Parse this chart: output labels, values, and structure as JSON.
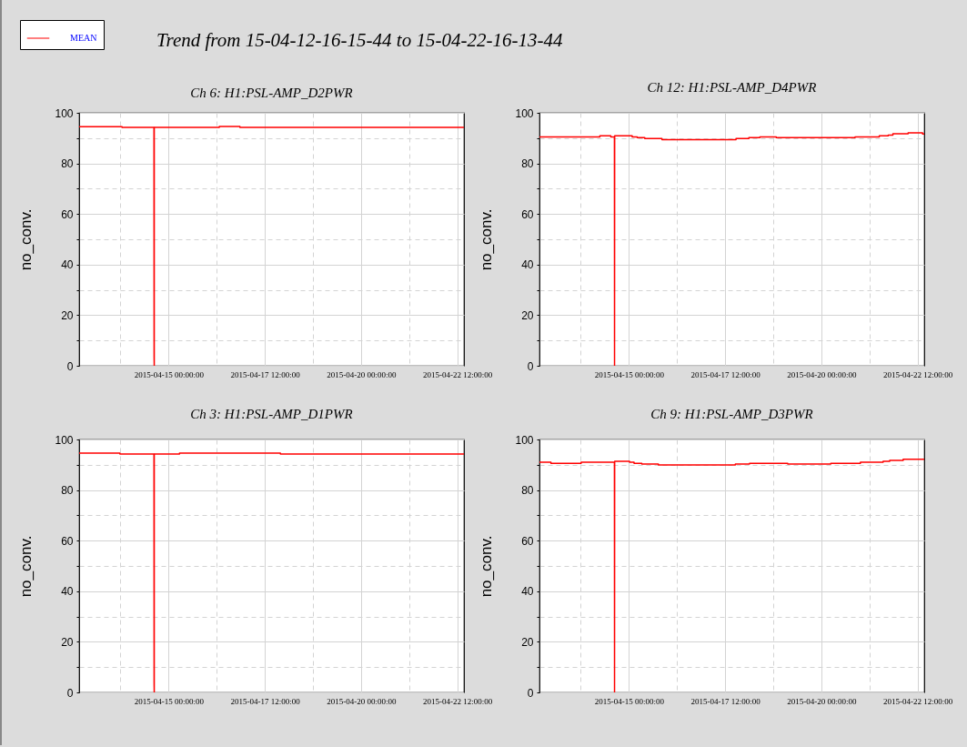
{
  "chart_data": [
    {
      "type": "line",
      "title": "Ch 6: H1:PSL-AMP_D2PWR",
      "ylabel": "no_conv.",
      "annotations": [
        "Trend from 15-04-12-16-15-44 to 15-04-22-16-13-44"
      ],
      "legend": "top left",
      "grid": true,
      "x": [
        "2015-04-12T16:15",
        "2015-04-13T19:00",
        "2015-04-13T19:00",
        "2015-04-14T14:55",
        "2015-04-14T15:00",
        "2015-04-14T15:05",
        "2015-04-14T15:05",
        "2015-04-16T07:40",
        "2015-04-16T07:40",
        "2015-04-16T20:30",
        "2015-04-16T20:30",
        "2015-04-22T16:13"
      ],
      "series": [
        {
          "name": "MEAN",
          "color": "#ff0000",
          "values": [
            94.5,
            94.5,
            94.2,
            94.2,
            3.3,
            0,
            94.2,
            94.2,
            94.6,
            94.6,
            94.2,
            94.2
          ]
        }
      ],
      "xlim": [
        "2015-04-12T16:15",
        "2015-04-22T16:13"
      ],
      "xticks": [
        {
          "value": "2015-04-13T18:00",
          "label": null
        },
        {
          "value": "2015-04-15T00:00",
          "label": "2015-04-15 00:00:00"
        },
        {
          "value": "2015-04-16T06:00",
          "label": null
        },
        {
          "value": "2015-04-17T12:00",
          "label": "2015-04-17 12:00:00"
        },
        {
          "value": "2015-04-18T18:00",
          "label": null
        },
        {
          "value": "2015-04-20T00:00",
          "label": "2015-04-20 00:00:00"
        },
        {
          "value": "2015-04-21T06:00",
          "label": null
        },
        {
          "value": "2015-04-22T12:00",
          "label": "2015-04-22 12:00:00"
        }
      ],
      "ylim": [
        0,
        100
      ],
      "yticks": [
        0,
        {
          "value": 10,
          "label": null
        },
        20,
        {
          "value": 30,
          "label": null
        },
        40,
        {
          "value": 50,
          "label": null
        },
        60,
        {
          "value": 70,
          "label": null
        },
        80,
        {
          "value": 90,
          "label": null
        },
        100
      ]
    },
    {
      "type": "line",
      "title": "Ch 12: H1:PSL-AMP_D4PWR",
      "ylabel": "no_conv.",
      "grid": true,
      "x": [
        "2015-04-12T16:15",
        "2015-04-14T05:55",
        "2015-04-14T05:55",
        "2015-04-14T12:45",
        "2015-04-14T12:45",
        "2015-04-14T15:00",
        "2015-04-14T15:05",
        "2015-04-14T15:10",
        "2015-04-15T02:05",
        "2015-04-15T02:05",
        "2015-04-15T05:15",
        "2015-04-15T05:15",
        "2015-04-15T09:55",
        "2015-04-15T09:55",
        "2015-04-15T20:40",
        "2015-04-15T20:40",
        "2015-04-17T18:50",
        "2015-04-17T18:50",
        "2015-04-18T02:50",
        "2015-04-18T02:50",
        "2015-04-18T09:40",
        "2015-04-18T09:40",
        "2015-04-18T19:55",
        "2015-04-18T19:55",
        "2015-04-20T21:05",
        "2015-04-20T21:05",
        "2015-04-21T12:10",
        "2015-04-21T12:10",
        "2015-04-21T17:45",
        "2015-04-21T17:45",
        "2015-04-21T20:40",
        "2015-04-21T20:40",
        "2015-04-22T06:10",
        "2015-04-22T06:10",
        "2015-04-22T15:10",
        "2015-04-22T15:10",
        "2015-04-22T16:13"
      ],
      "series": [
        {
          "color": "#ff0000",
          "values": [
            90.5,
            90.5,
            90.9,
            90.9,
            90.5,
            90.5,
            0,
            90.9,
            90.9,
            90.5,
            90.5,
            90.2,
            90.2,
            89.8,
            89.8,
            89.4,
            89.4,
            89.8,
            89.8,
            90.2,
            90.2,
            90.5,
            90.5,
            90.2,
            90.2,
            90.5,
            90.5,
            90.9,
            90.9,
            91.2,
            91.2,
            91.7,
            91.7,
            92.1,
            92.1,
            91.6,
            91.6
          ]
        }
      ],
      "xlim": [
        "2015-04-12T16:15",
        "2015-04-22T16:13"
      ],
      "xticks": [
        {
          "value": "2015-04-13T18:00",
          "label": null
        },
        {
          "value": "2015-04-15T00:00",
          "label": "2015-04-15 00:00:00"
        },
        {
          "value": "2015-04-16T06:00",
          "label": null
        },
        {
          "value": "2015-04-17T12:00",
          "label": "2015-04-17 12:00:00"
        },
        {
          "value": "2015-04-18T18:00",
          "label": null
        },
        {
          "value": "2015-04-20T00:00",
          "label": "2015-04-20 00:00:00"
        },
        {
          "value": "2015-04-21T06:00",
          "label": null
        },
        {
          "value": "2015-04-22T12:00",
          "label": "2015-04-22 12:00:00"
        }
      ],
      "ylim": [
        0,
        100
      ],
      "yticks": [
        0,
        {
          "value": 10,
          "label": null
        },
        20,
        {
          "value": 30,
          "label": null
        },
        40,
        {
          "value": 50,
          "label": null
        },
        60,
        {
          "value": 70,
          "label": null
        },
        80,
        {
          "value": 90,
          "label": null
        },
        100
      ]
    },
    {
      "type": "line",
      "title": "Ch 3: H1:PSL-AMP_D1PWR",
      "ylabel": "no_conv.",
      "grid": true,
      "x": [
        "2015-04-12T16:15",
        "2015-04-13T17:40",
        "2015-04-13T17:40",
        "2015-04-14T14:55",
        "2015-04-14T15:00",
        "2015-04-14T15:05",
        "2015-04-14T15:05",
        "2015-04-15T06:50",
        "2015-04-15T06:50",
        "2015-04-17T21:45",
        "2015-04-17T21:45",
        "2015-04-22T16:13"
      ],
      "series": [
        {
          "color": "#ff0000",
          "values": [
            94.6,
            94.6,
            94.2,
            94.2,
            3.4,
            0,
            94.2,
            94.2,
            94.6,
            94.6,
            94.2,
            94.2
          ]
        }
      ],
      "xlim": [
        "2015-04-12T16:15",
        "2015-04-22T16:13"
      ],
      "xticks": [
        {
          "value": "2015-04-13T18:00",
          "label": null
        },
        {
          "value": "2015-04-15T00:00",
          "label": "2015-04-15 00:00:00"
        },
        {
          "value": "2015-04-16T06:00",
          "label": null
        },
        {
          "value": "2015-04-17T12:00",
          "label": "2015-04-17 12:00:00"
        },
        {
          "value": "2015-04-18T18:00",
          "label": null
        },
        {
          "value": "2015-04-20T00:00",
          "label": "2015-04-20 00:00:00"
        },
        {
          "value": "2015-04-21T06:00",
          "label": null
        },
        {
          "value": "2015-04-22T12:00",
          "label": "2015-04-22 12:00:00"
        }
      ],
      "ylim": [
        0,
        100
      ],
      "yticks": [
        0,
        {
          "value": 10,
          "label": null
        },
        20,
        {
          "value": 30,
          "label": null
        },
        40,
        {
          "value": 50,
          "label": null
        },
        60,
        {
          "value": 70,
          "label": null
        },
        80,
        {
          "value": 90,
          "label": null
        },
        100
      ]
    },
    {
      "type": "line",
      "title": "Ch 9: H1:PSL-AMP_D3PWR",
      "ylabel": "no_conv.",
      "grid": true,
      "x": [
        "2015-04-12T16:15",
        "2015-04-12T23:25",
        "2015-04-12T23:25",
        "2015-04-13T18:15",
        "2015-04-13T18:15",
        "2015-04-14T15:00",
        "2015-04-14T15:05",
        "2015-04-14T15:10",
        "2015-04-15T00:25",
        "2015-04-15T00:25",
        "2015-04-15T03:15",
        "2015-04-15T03:15",
        "2015-04-15T08:05",
        "2015-04-15T08:05",
        "2015-04-15T18:25",
        "2015-04-15T18:25",
        "2015-04-17T18:25",
        "2015-04-17T18:25",
        "2015-04-18T03:15",
        "2015-04-18T03:15",
        "2015-04-19T03:05",
        "2015-04-19T03:05",
        "2015-04-20T05:55",
        "2015-04-20T05:55",
        "2015-04-21T00:25",
        "2015-04-21T00:25",
        "2015-04-21T14:35",
        "2015-04-21T14:35",
        "2015-04-21T18:40",
        "2015-04-21T18:40",
        "2015-04-22T03:05",
        "2015-04-22T03:05",
        "2015-04-22T16:13"
      ],
      "series": [
        {
          "color": "#ff0000",
          "values": [
            91.0,
            91.0,
            90.6,
            90.6,
            91.0,
            91.0,
            0,
            91.4,
            91.4,
            91.0,
            91.0,
            90.6,
            90.6,
            90.3,
            90.3,
            89.9,
            89.9,
            90.3,
            90.3,
            90.6,
            90.6,
            90.3,
            90.3,
            90.6,
            90.6,
            91.0,
            91.0,
            91.4,
            91.4,
            91.7,
            91.7,
            92.2,
            92.2
          ]
        }
      ],
      "xlim": [
        "2015-04-12T16:15",
        "2015-04-22T16:13"
      ],
      "xticks": [
        {
          "value": "2015-04-13T18:00",
          "label": null
        },
        {
          "value": "2015-04-15T00:00",
          "label": "2015-04-15 00:00:00"
        },
        {
          "value": "2015-04-16T06:00",
          "label": null
        },
        {
          "value": "2015-04-17T12:00",
          "label": "2015-04-17 12:00:00"
        },
        {
          "value": "2015-04-18T18:00",
          "label": null
        },
        {
          "value": "2015-04-20T00:00",
          "label": "2015-04-20 00:00:00"
        },
        {
          "value": "2015-04-21T06:00",
          "label": null
        },
        {
          "value": "2015-04-22T12:00",
          "label": "2015-04-22 12:00:00"
        }
      ],
      "ylim": [
        0,
        100
      ],
      "yticks": [
        0,
        {
          "value": 10,
          "label": null
        },
        20,
        {
          "value": 30,
          "label": null
        },
        40,
        {
          "value": 50,
          "label": null
        },
        60,
        {
          "value": 70,
          "label": null
        },
        80,
        {
          "value": 90,
          "label": null
        },
        100
      ]
    }
  ]
}
